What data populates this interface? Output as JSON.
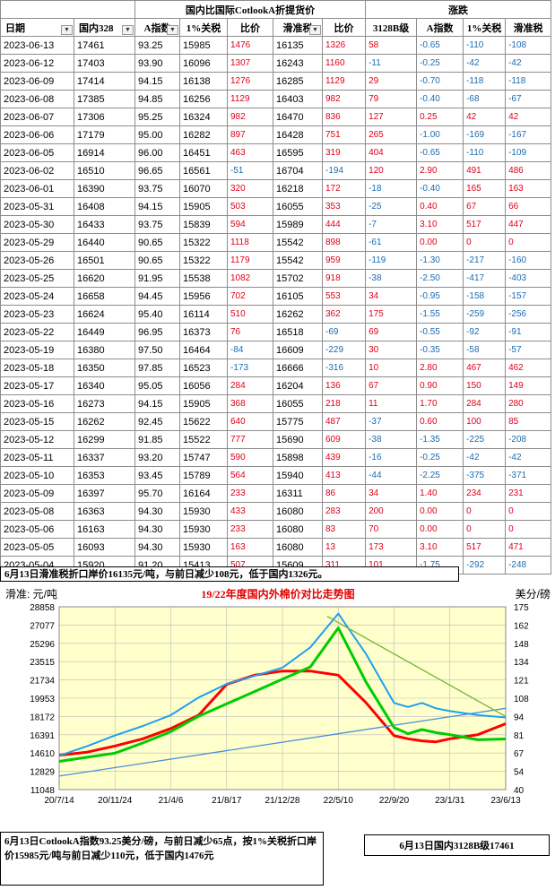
{
  "table": {
    "group_headers": {
      "middle": "国内比国际CotlookA折提货价",
      "right": "涨跌"
    },
    "columns": [
      "日期",
      "国内328",
      "A指数",
      "1%关税",
      "比价",
      "滑准税",
      "比价",
      "3128B级",
      "A指数",
      "1%关税",
      "滑准税"
    ],
    "rows": [
      [
        "2023-06-13",
        "17461",
        "93.25",
        "15985",
        "1476",
        "16135",
        "1326",
        "58",
        "-0.65",
        "-110",
        "-108"
      ],
      [
        "2023-06-12",
        "17403",
        "93.90",
        "16096",
        "1307",
        "16243",
        "1160",
        "-11",
        "-0.25",
        "-42",
        "-42"
      ],
      [
        "2023-06-09",
        "17414",
        "94.15",
        "16138",
        "1276",
        "16285",
        "1129",
        "29",
        "-0.70",
        "-118",
        "-118"
      ],
      [
        "2023-06-08",
        "17385",
        "94.85",
        "16256",
        "1129",
        "16403",
        "982",
        "79",
        "-0.40",
        "-68",
        "-67"
      ],
      [
        "2023-06-07",
        "17306",
        "95.25",
        "16324",
        "982",
        "16470",
        "836",
        "127",
        "0.25",
        "42",
        "42"
      ],
      [
        "2023-06-06",
        "17179",
        "95.00",
        "16282",
        "897",
        "16428",
        "751",
        "265",
        "-1.00",
        "-169",
        "-167"
      ],
      [
        "2023-06-05",
        "16914",
        "96.00",
        "16451",
        "463",
        "16595",
        "319",
        "404",
        "-0.65",
        "-110",
        "-109"
      ],
      [
        "2023-06-02",
        "16510",
        "96.65",
        "16561",
        "-51",
        "16704",
        "-194",
        "120",
        "2.90",
        "491",
        "486"
      ],
      [
        "2023-06-01",
        "16390",
        "93.75",
        "16070",
        "320",
        "16218",
        "172",
        "-18",
        "-0.40",
        "165",
        "163"
      ],
      [
        "2023-05-31",
        "16408",
        "94.15",
        "15905",
        "503",
        "16055",
        "353",
        "-25",
        "0.40",
        "67",
        "66"
      ],
      [
        "2023-05-30",
        "16433",
        "93.75",
        "15839",
        "594",
        "15989",
        "444",
        "-7",
        "3.10",
        "517",
        "447"
      ],
      [
        "2023-05-29",
        "16440",
        "90.65",
        "15322",
        "1118",
        "15542",
        "898",
        "-61",
        "0.00",
        "0",
        "0"
      ],
      [
        "2023-05-26",
        "16501",
        "90.65",
        "15322",
        "1179",
        "15542",
        "959",
        "-119",
        "-1.30",
        "-217",
        "-160"
      ],
      [
        "2023-05-25",
        "16620",
        "91.95",
        "15538",
        "1082",
        "15702",
        "918",
        "-38",
        "-2.50",
        "-417",
        "-403"
      ],
      [
        "2023-05-24",
        "16658",
        "94.45",
        "15956",
        "702",
        "16105",
        "553",
        "34",
        "-0.95",
        "-158",
        "-157"
      ],
      [
        "2023-05-23",
        "16624",
        "95.40",
        "16114",
        "510",
        "16262",
        "362",
        "175",
        "-1.55",
        "-259",
        "-256"
      ],
      [
        "2023-05-22",
        "16449",
        "96.95",
        "16373",
        "76",
        "16518",
        "-69",
        "69",
        "-0.55",
        "-92",
        "-91"
      ],
      [
        "2023-05-19",
        "16380",
        "97.50",
        "16464",
        "-84",
        "16609",
        "-229",
        "30",
        "-0.35",
        "-58",
        "-57"
      ],
      [
        "2023-05-18",
        "16350",
        "97.85",
        "16523",
        "-173",
        "16666",
        "-316",
        "10",
        "2.80",
        "467",
        "462"
      ],
      [
        "2023-05-17",
        "16340",
        "95.05",
        "16056",
        "284",
        "16204",
        "136",
        "67",
        "0.90",
        "150",
        "149"
      ],
      [
        "2023-05-16",
        "16273",
        "94.15",
        "15905",
        "368",
        "16055",
        "218",
        "11",
        "1.70",
        "284",
        "280"
      ],
      [
        "2023-05-15",
        "16262",
        "92.45",
        "15622",
        "640",
        "15775",
        "487",
        "-37",
        "0.60",
        "100",
        "85"
      ],
      [
        "2023-05-12",
        "16299",
        "91.85",
        "15522",
        "777",
        "15690",
        "609",
        "-38",
        "-1.35",
        "-225",
        "-208"
      ],
      [
        "2023-05-11",
        "16337",
        "93.20",
        "15747",
        "590",
        "15898",
        "439",
        "-16",
        "-0.25",
        "-42",
        "-42"
      ],
      [
        "2023-05-10",
        "16353",
        "93.45",
        "15789",
        "564",
        "15940",
        "413",
        "-44",
        "-2.25",
        "-375",
        "-371"
      ],
      [
        "2023-05-09",
        "16397",
        "95.70",
        "16164",
        "233",
        "16311",
        "86",
        "34",
        "1.40",
        "234",
        "231"
      ],
      [
        "2023-05-08",
        "16363",
        "94.30",
        "15930",
        "433",
        "16080",
        "283",
        "200",
        "0.00",
        "0",
        "0"
      ],
      [
        "2023-05-06",
        "16163",
        "94.30",
        "15930",
        "233",
        "16080",
        "83",
        "70",
        "0.00",
        "0",
        "0"
      ],
      [
        "2023-05-05",
        "16093",
        "94.30",
        "15930",
        "163",
        "16080",
        "13",
        "173",
        "3.10",
        "517",
        "471"
      ],
      [
        "2023-05-04",
        "15920",
        "91.20",
        "15413",
        "507",
        "15609",
        "311",
        "101",
        "-1.75",
        "-292",
        "-248"
      ]
    ]
  },
  "note_top": "6月13日滑准税折口岸价16135元/吨，与前日减少108元，低于国内1326元。",
  "note_bottom": "6月13日CotlookA指数93.25美分/磅，与前日减少65点，按1%关税折口岸价15985元/吨与前日减少110元，低于国内1476元",
  "note_right": "6月13日国内3128B级17461",
  "chart_data": {
    "type": "line",
    "title": "19/22年度国内外棉价对比走势图",
    "ylabel_left": "滑准: 元/吨",
    "ylabel_right": "美分/磅",
    "left_ticks": [
      "28858",
      "27077",
      "25296",
      "23515",
      "21734",
      "19953",
      "18172",
      "16391",
      "14610",
      "12829",
      "11048"
    ],
    "right_ticks": [
      "175",
      "162",
      "148",
      "134",
      "121",
      "108",
      "94",
      "81",
      "67",
      "54",
      "40"
    ],
    "ylim_left": [
      11048,
      28858
    ],
    "ylim_right": [
      40,
      175
    ],
    "x_ticks": [
      "20/7/14",
      "20/11/24",
      "21/4/6",
      "21/8/17",
      "21/12/28",
      "22/5/10",
      "22/9/20",
      "23/1/31",
      "23/6/13"
    ],
    "grid": true,
    "background": "#ffffcc",
    "series": [
      {
        "role": "domestic_3128B",
        "axis": "left",
        "color": "#ff0000",
        "x": [
          0,
          0.5,
          1,
          1.5,
          2,
          2.5,
          3,
          3.5,
          4,
          4.5,
          5,
          5.5,
          6,
          6.25,
          6.5,
          6.75,
          7,
          7.5,
          8
        ],
        "y": [
          14400,
          14700,
          15300,
          16000,
          17000,
          18300,
          21300,
          22200,
          22600,
          22600,
          22200,
          19500,
          16300,
          16000,
          15800,
          15700,
          16000,
          16400,
          17461
        ]
      },
      {
        "role": "1pct_tariff_price",
        "axis": "left",
        "color": "#00cc00",
        "x": [
          0,
          0.5,
          1,
          1.5,
          2,
          2.5,
          3,
          3.5,
          4,
          4.5,
          5,
          5.5,
          6,
          6.25,
          6.5,
          6.75,
          7,
          7.5,
          8
        ],
        "y": [
          13800,
          14200,
          14600,
          15600,
          16700,
          18200,
          19400,
          20600,
          21800,
          23000,
          26800,
          21500,
          17100,
          16500,
          16900,
          16600,
          16400,
          15900,
          15985
        ]
      },
      {
        "role": "cotlook_a_index",
        "axis": "right",
        "color": "#1ea0f0",
        "x": [
          0,
          0.5,
          1,
          1.5,
          2,
          2.5,
          3,
          3.5,
          4,
          4.5,
          5,
          5.5,
          6,
          6.25,
          6.5,
          6.75,
          7,
          7.5,
          8
        ],
        "y": [
          65,
          72,
          80,
          87,
          95,
          108,
          118,
          124,
          130,
          145,
          170,
          140,
          104,
          101,
          104,
          100,
          98,
          95,
          93.25
        ]
      },
      {
        "role": "trend_line",
        "axis": "right",
        "color": "#4a8fd8",
        "x": [
          0,
          8
        ],
        "y": [
          50,
          100
        ]
      },
      {
        "role": "trend_line_upper",
        "axis": "right",
        "color": "#79b13c",
        "x": [
          4.8,
          8
        ],
        "y": [
          168,
          94
        ]
      }
    ]
  }
}
